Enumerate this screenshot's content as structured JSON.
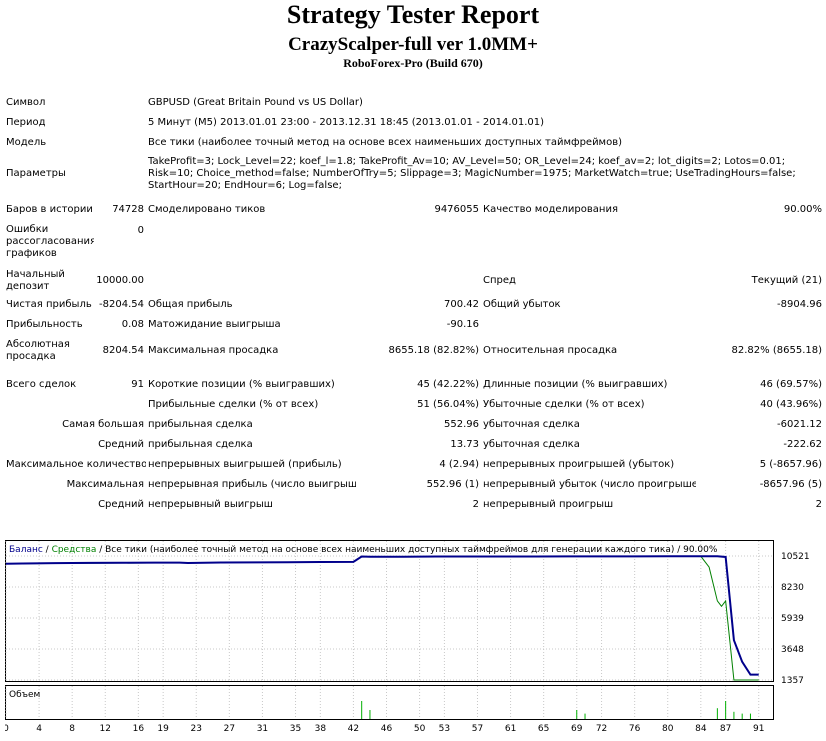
{
  "report": {
    "title": "Strategy Tester Report",
    "subtitle": "CrazyScalper-full ver 1.0MM+",
    "server": "RoboForex-Pro (Build 670)"
  },
  "info": {
    "symbol_label": "Символ",
    "symbol_value": "GBPUSD (Great Britain Pound vs US Dollar)",
    "period_label": "Период",
    "period_value": "5 Минут (M5) 2013.01.01 23:00 - 2013.12.31 18:45 (2013.01.01 - 2014.01.01)",
    "model_label": "Модель",
    "model_value": "Все тики (наиболее точный метод на основе всех наименьших доступных таймфреймов)",
    "params_label": "Параметры",
    "params_value": "TakeProfit=3; Lock_Level=22; koef_l=1.8; TakeProfit_Av=10; AV_Level=50; OR_Level=24; koef_av=2; lot_digits=2; Lotos=0.01; Risk=10; Choice_method=false; NumberOfTry=5; Slippage=3; MagicNumber=1975; MarketWatch=true; UseTradingHours=false; StartHour=20; EndHour=6; Log=false;"
  },
  "stats": {
    "bars_label": "Баров в истории",
    "bars_value": "74728",
    "ticks_label": "Смоделировано тиков",
    "ticks_value": "9476055",
    "quality_label": "Качество моделирования",
    "quality_value": "90.00%",
    "errors_label": "Ошибки рассогласования графиков",
    "errors_value": "0",
    "deposit_label": "Начальный депозит",
    "deposit_value": "10000.00",
    "spread_label": "Спред",
    "spread_value": "Текущий (21)",
    "net_label": "Чистая прибыль",
    "net_value": "-8204.54",
    "gross_profit_label": "Общая прибыль",
    "gross_profit_value": "700.42",
    "gross_loss_label": "Общий убыток",
    "gross_loss_value": "-8904.96",
    "pf_label": "Прибыльность",
    "pf_value": "0.08",
    "payoff_label": "Матожидание выигрыша",
    "payoff_value": "-90.16",
    "abs_dd_label": "Абсолютная просадка",
    "abs_dd_value": "8204.54",
    "max_dd_label": "Максимальная просадка",
    "max_dd_value": "8655.18 (82.82%)",
    "rel_dd_label": "Относительная просадка",
    "rel_dd_value": "82.82% (8655.18)",
    "trades_label": "Всего сделок",
    "trades_value": "91",
    "short_label": "Короткие позиции (% выигравших)",
    "short_value": "45 (42.22%)",
    "long_label": "Длинные позиции (% выигравших)",
    "long_value": "46 (69.57%)",
    "win_label": "Прибыльные сделки (% от всех)",
    "win_value": "51 (56.04%)",
    "loss_label": "Убыточные сделки (% от всех)",
    "loss_value": "40 (43.96%)",
    "largest_label": "Самая большая",
    "largest_profit_label": "прибыльная сделка",
    "largest_profit_value": "552.96",
    "largest_loss_label": "убыточная сделка",
    "largest_loss_value": "-6021.12",
    "avg_label": "Средний",
    "avg_profit_label": "прибыльная сделка",
    "avg_profit_value": "13.73",
    "avg_loss_label": "убыточная сделка",
    "avg_loss_value": "-222.62",
    "maxcount_label": "Максимальное количество",
    "cons_wins_label": "непрерывных выигрышей (прибыль)",
    "cons_wins_value": "4 (2.94)",
    "cons_losses_label": "непрерывных проигрышей (убыток)",
    "cons_losses_value": "5 (-8657.96)",
    "max_label": "Максимальная",
    "cons_profit_label": "непрерывная прибыль (число выигрышей)",
    "cons_profit_value": "552.96 (1)",
    "cons_loss_label": "непрерывный убыток (число проигрышей)",
    "cons_loss_value": "-8657.96 (5)",
    "avg2_label": "Средний",
    "avg_cons_win_label": "непрерывный выигрыш",
    "avg_cons_win_value": "2",
    "avg_cons_loss_label": "непрерывный проигрыш",
    "avg_cons_loss_value": "2"
  },
  "chart_legend": {
    "balance": "Баланс",
    "sep1": " / ",
    "equity": "Средства",
    "rest": " / Все тики (наиболее точный метод на основе всех наименьших доступных таймфреймов для генерации каждого тика) / 90.00%"
  },
  "colors": {
    "balance": "#00008b",
    "equity": "#008000",
    "volume": "#00b000",
    "grid": "#c8c8c8",
    "background": "#ffffff"
  },
  "chart_data": {
    "type": "line",
    "title": "",
    "y_ticks": [
      10521,
      8230,
      5939,
      3648,
      1357
    ],
    "x_ticks": [
      0,
      4,
      8,
      12,
      16,
      19,
      23,
      27,
      31,
      35,
      38,
      42,
      46,
      50,
      53,
      57,
      61,
      65,
      69,
      72,
      76,
      80,
      84,
      87,
      91
    ],
    "ylim": [
      1357,
      10521
    ],
    "xlim": [
      0,
      92
    ],
    "series": [
      {
        "name": "Баланс",
        "x": [
          0,
          2,
          6,
          10,
          14,
          18,
          21,
          22,
          26,
          30,
          34,
          38,
          42,
          43,
          44,
          48,
          52,
          56,
          60,
          64,
          68,
          72,
          76,
          80,
          84,
          86,
          87,
          88,
          89,
          90,
          91
        ],
        "y": [
          9950,
          9970,
          9990,
          10010,
          10020,
          10030,
          10030,
          10000,
          10040,
          10050,
          10060,
          10080,
          10090,
          10480,
          10470,
          10470,
          10480,
          10480,
          10480,
          10480,
          10490,
          10490,
          10490,
          10500,
          10500,
          10500,
          10450,
          4300,
          2700,
          1750,
          1750
        ]
      },
      {
        "name": "Средства",
        "x": [
          0,
          42,
          43,
          84,
          85,
          86,
          86.5,
          87,
          88,
          91
        ],
        "y": [
          9950,
          10090,
          10480,
          10500,
          9700,
          7200,
          6800,
          7200,
          1357,
          1357
        ]
      }
    ],
    "volume": {
      "label": "Объем",
      "x": [
        43,
        44,
        69,
        70,
        86,
        87,
        88,
        89,
        90
      ],
      "values": [
        1,
        0.5,
        0.5,
        0.3,
        0.6,
        1,
        0.4,
        0.3,
        0.3
      ]
    }
  }
}
